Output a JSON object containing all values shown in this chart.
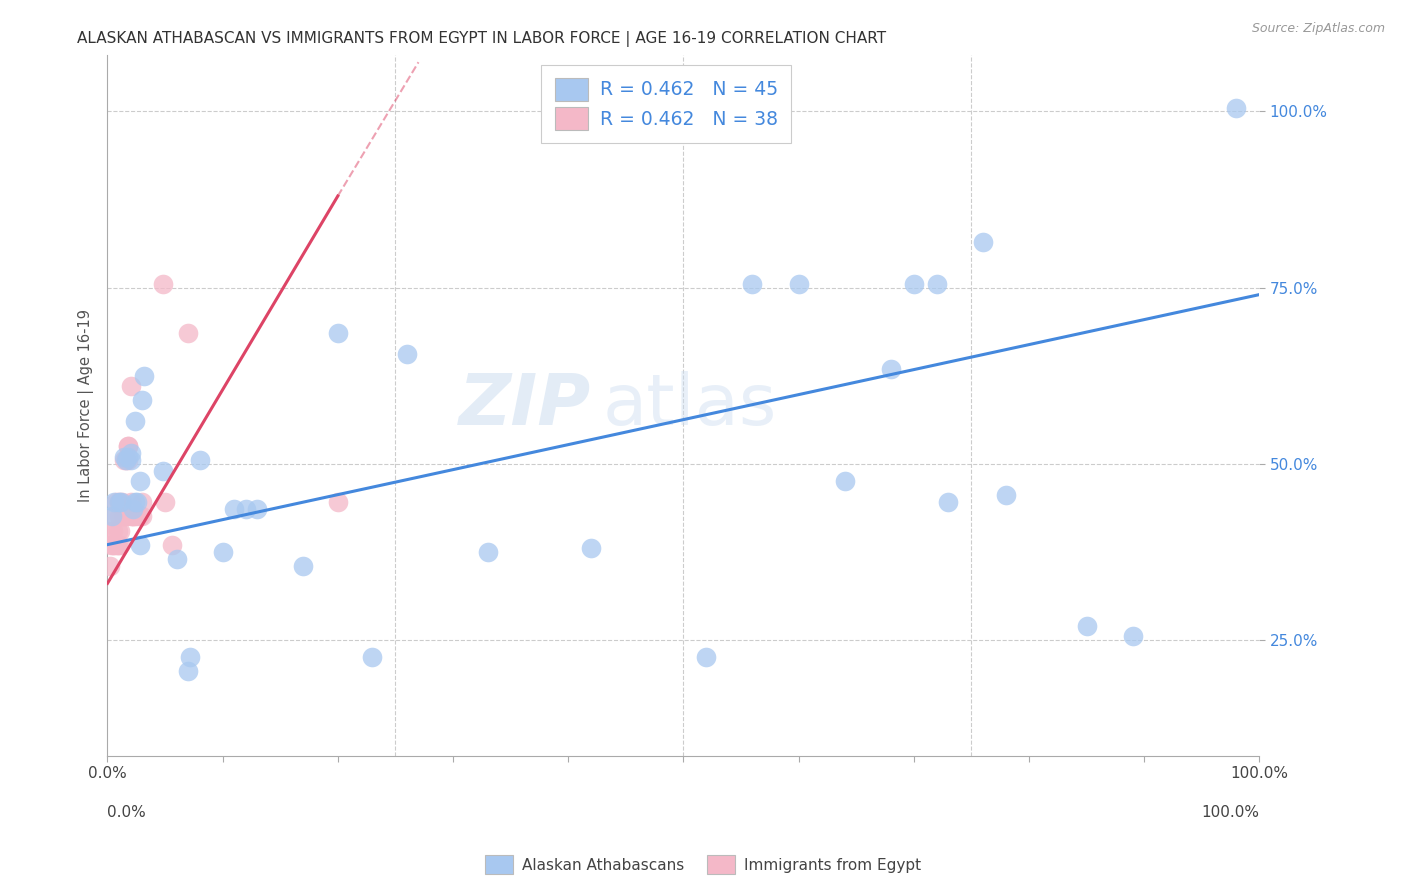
{
  "title": "ALASKAN ATHABASCAN VS IMMIGRANTS FROM EGYPT IN LABOR FORCE | AGE 16-19 CORRELATION CHART",
  "source": "Source: ZipAtlas.com",
  "ylabel": "In Labor Force | Age 16-19",
  "xlabel": "",
  "background_color": "#ffffff",
  "grid_color": "#cccccc",
  "watermark_zip": "ZIP",
  "watermark_atlas": "atlas",
  "legend_r_blue": "R = 0.462",
  "legend_n_blue": "N = 45",
  "legend_r_pink": "R = 0.462",
  "legend_n_pink": "N = 38",
  "blue_color": "#a8c8f0",
  "pink_color": "#f4b8c8",
  "trend_blue": "#4488dd",
  "trend_pink": "#dd4466",
  "blue_scatter_x": [
    0.004,
    0.006,
    0.01,
    0.012,
    0.014,
    0.016,
    0.018,
    0.02,
    0.02,
    0.022,
    0.024,
    0.024,
    0.026,
    0.028,
    0.028,
    0.03,
    0.032,
    0.048,
    0.06,
    0.07,
    0.072,
    0.08,
    0.1,
    0.11,
    0.12,
    0.13,
    0.17,
    0.2,
    0.23,
    0.26,
    0.33,
    0.42,
    0.52,
    0.56,
    0.6,
    0.64,
    0.68,
    0.7,
    0.72,
    0.73,
    0.76,
    0.78,
    0.85,
    0.89,
    0.98
  ],
  "blue_scatter_y": [
    0.425,
    0.445,
    0.445,
    0.445,
    0.51,
    0.505,
    0.51,
    0.505,
    0.515,
    0.435,
    0.445,
    0.56,
    0.445,
    0.385,
    0.475,
    0.59,
    0.625,
    0.49,
    0.365,
    0.205,
    0.225,
    0.505,
    0.375,
    0.435,
    0.435,
    0.435,
    0.355,
    0.685,
    0.225,
    0.655,
    0.375,
    0.38,
    0.225,
    0.755,
    0.755,
    0.475,
    0.635,
    0.755,
    0.755,
    0.445,
    0.815,
    0.455,
    0.27,
    0.255,
    1.005
  ],
  "pink_scatter_x": [
    0.002,
    0.003,
    0.003,
    0.005,
    0.005,
    0.006,
    0.006,
    0.007,
    0.008,
    0.009,
    0.009,
    0.01,
    0.01,
    0.011,
    0.011,
    0.012,
    0.013,
    0.014,
    0.014,
    0.016,
    0.016,
    0.018,
    0.018,
    0.018,
    0.02,
    0.02,
    0.02,
    0.022,
    0.022,
    0.025,
    0.028,
    0.03,
    0.03,
    0.048,
    0.05,
    0.056,
    0.07,
    0.2
  ],
  "pink_scatter_y": [
    0.355,
    0.385,
    0.405,
    0.385,
    0.405,
    0.385,
    0.425,
    0.445,
    0.385,
    0.385,
    0.405,
    0.425,
    0.445,
    0.385,
    0.405,
    0.425,
    0.445,
    0.425,
    0.505,
    0.505,
    0.425,
    0.505,
    0.525,
    0.525,
    0.425,
    0.445,
    0.61,
    0.425,
    0.425,
    0.425,
    0.425,
    0.425,
    0.445,
    0.755,
    0.445,
    0.385,
    0.685,
    0.445
  ],
  "xlim": [
    -0.01,
    1.02
  ],
  "ylim": [
    0.08,
    1.1
  ],
  "plot_xlim": [
    0.0,
    1.0
  ],
  "plot_ylim": [
    0.085,
    1.08
  ],
  "xtick_positions": [
    0.0,
    0.1,
    0.2,
    0.3,
    0.4,
    0.5,
    0.6,
    0.7,
    0.8,
    0.9,
    1.0
  ],
  "xtick_labels_show": {
    "0.0": "0.0%",
    "0.5": "",
    "1.0": "100.0%"
  },
  "ytick_positions": [
    0.25,
    0.5,
    0.75,
    1.0
  ],
  "ytick_labels": [
    "25.0%",
    "50.0%",
    "75.0%",
    "100.0%"
  ],
  "grid_yticks": [
    0.25,
    0.5,
    0.75,
    1.0
  ],
  "grid_xticks": [
    0.25,
    0.5,
    0.75
  ],
  "blue_trend_x0": 0.0,
  "blue_trend_y0": 0.385,
  "blue_trend_x1": 1.0,
  "blue_trend_y1": 0.74,
  "pink_trend_x0": 0.0,
  "pink_trend_y0": 0.33,
  "pink_trend_x1": 0.2,
  "pink_trend_y1": 0.88,
  "pink_trend_dash_x0": 0.2,
  "pink_trend_dash_y0": 0.88,
  "pink_trend_dash_x1": 0.27,
  "pink_trend_dash_y1": 1.07
}
